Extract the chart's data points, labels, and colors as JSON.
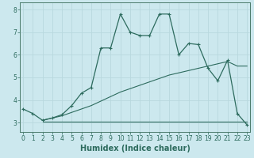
{
  "xlabel": "Humidex (Indice chaleur)",
  "bg_color": "#cce8ee",
  "line_color": "#2d6b5e",
  "grid_color": "#b8d8de",
  "x_major": [
    0,
    1,
    2,
    3,
    4,
    5,
    6,
    7,
    8,
    9,
    10,
    11,
    12,
    13,
    14,
    15,
    16,
    17,
    18,
    19,
    20,
    21,
    22,
    23
  ],
  "y_major": [
    3,
    4,
    5,
    6,
    7,
    8
  ],
  "ylim": [
    2.6,
    8.3
  ],
  "xlim": [
    -0.3,
    23.3
  ],
  "series1_x": [
    0,
    1,
    2,
    3,
    4,
    5,
    6,
    7,
    8,
    9,
    10,
    11,
    12,
    13,
    14,
    15,
    16,
    17,
    18,
    19,
    20,
    21,
    22,
    23
  ],
  "series1_y": [
    3.6,
    3.4,
    3.1,
    3.2,
    3.35,
    3.75,
    4.3,
    4.55,
    6.3,
    6.3,
    7.8,
    7.0,
    6.85,
    6.85,
    7.8,
    7.8,
    6.0,
    6.5,
    6.45,
    5.4,
    4.85,
    5.75,
    3.4,
    2.9
  ],
  "series2_x": [
    2,
    3,
    4,
    5,
    6,
    7,
    8,
    9,
    10,
    11,
    12,
    13,
    14,
    15,
    16,
    17,
    18,
    19,
    20,
    21,
    22,
    23
  ],
  "series2_y": [
    3.1,
    3.2,
    3.3,
    3.45,
    3.6,
    3.75,
    3.95,
    4.15,
    4.35,
    4.5,
    4.65,
    4.8,
    4.95,
    5.1,
    5.2,
    5.3,
    5.4,
    5.5,
    5.6,
    5.7,
    5.5,
    5.5
  ],
  "series3_x": [
    2,
    3,
    4,
    5,
    6,
    7,
    8,
    9,
    10,
    11,
    12,
    13,
    14,
    15,
    16,
    17,
    18,
    19,
    20,
    21,
    22,
    23
  ],
  "series3_y": [
    3.05,
    3.05,
    3.05,
    3.05,
    3.05,
    3.05,
    3.05,
    3.05,
    3.05,
    3.05,
    3.05,
    3.05,
    3.05,
    3.05,
    3.05,
    3.05,
    3.05,
    3.05,
    3.05,
    3.05,
    3.05,
    3.05
  ],
  "tick_fontsize": 5.5,
  "xlabel_fontsize": 7,
  "label_color": "#2d6b5e",
  "spine_color": "#4a7a6a"
}
